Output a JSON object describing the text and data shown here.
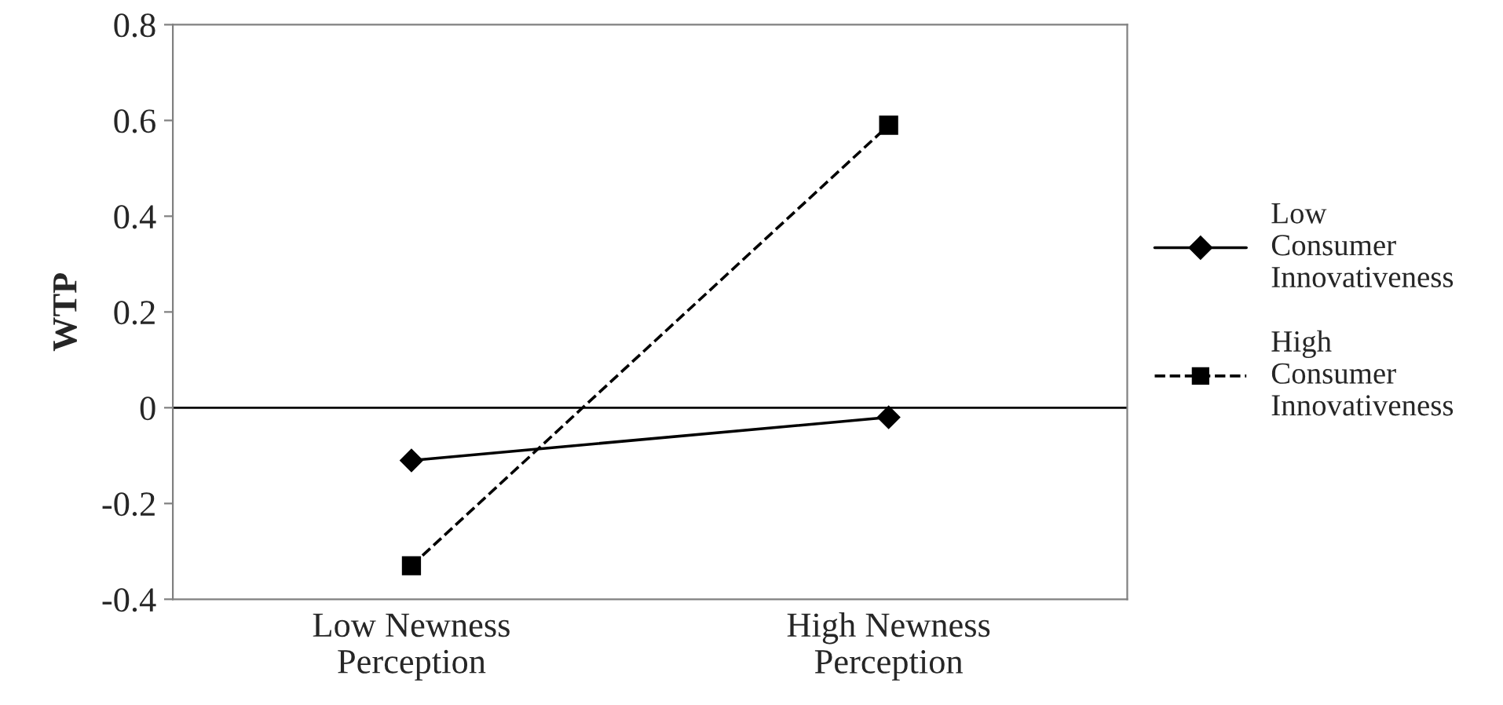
{
  "chart_data": {
    "type": "line",
    "ylabel": "WTP",
    "categories": [
      "Low Newness Perception",
      "High Newness Perception"
    ],
    "series": [
      {
        "name": "Low Consumer Innovativeness",
        "color": "#000000",
        "values": [
          -0.11,
          -0.02
        ],
        "marker": "diamond",
        "line_style": "solid"
      },
      {
        "name": "High Consumer Innovativeness",
        "color": "#000000",
        "values": [
          -0.33,
          0.59
        ],
        "marker": "square",
        "line_style": "dashed"
      }
    ],
    "ylim": [
      -0.4,
      0.8
    ],
    "yticks": [
      -0.4,
      -0.2,
      0,
      0.2,
      0.4,
      0.6,
      0.8
    ],
    "ref_lines": [
      {
        "axis": "y",
        "value": 0,
        "color": "#000000"
      }
    ],
    "grid": false,
    "legend": "right"
  }
}
